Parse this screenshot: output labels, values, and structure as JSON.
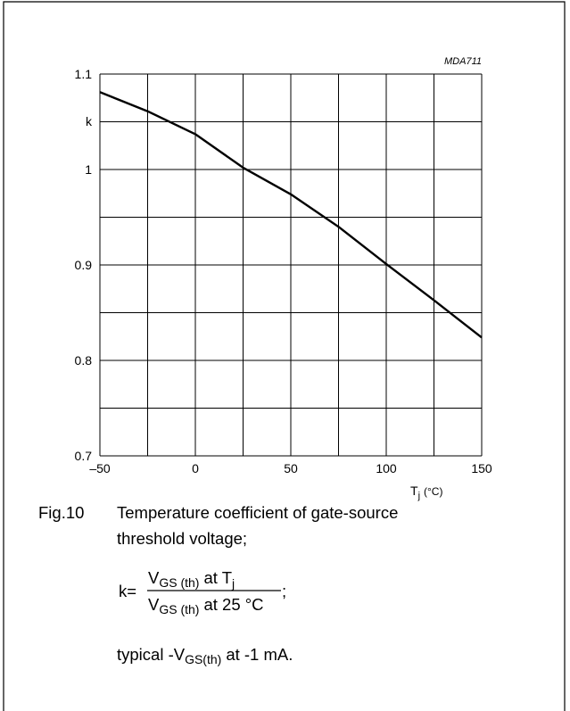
{
  "chart_data": {
    "type": "line",
    "code": "MDA711",
    "y_label": "k",
    "x_label": {
      "main": "T",
      "sub": "j",
      "unit": "(°C)"
    },
    "x": [
      -50,
      -25,
      0,
      25,
      50,
      75,
      100,
      125,
      150
    ],
    "values": [
      1.081,
      1.061,
      1.037,
      1.002,
      0.974,
      0.94,
      0.901,
      0.863,
      0.824
    ],
    "color": "#000000",
    "xlim": [
      -50,
      150
    ],
    "ylim": [
      0.7,
      1.1
    ],
    "xticks": [
      {
        "value": -50,
        "label": "–50"
      },
      0,
      50,
      100,
      150
    ],
    "yticks": [
      0.7,
      0.8,
      0.9,
      1,
      1.1
    ],
    "xgrid": [
      -50,
      -25,
      0,
      25,
      50,
      75,
      100,
      125,
      150
    ],
    "ygrid": [
      0.7,
      0.75,
      0.8,
      0.85,
      0.9,
      0.95,
      1,
      1.05,
      1.1
    ],
    "grid": true,
    "caption": {
      "fig": "Fig.10",
      "line1": "Temperature coefficient of gate-source",
      "line2": "threshold voltage;",
      "formula": {
        "lhs": "k=",
        "num": {
          "v": "V",
          "sub": "GS (th)",
          "mid": "at T",
          "sub2": "j"
        },
        "den": {
          "v": "V",
          "sub": "GS (th)",
          "mid": "at 25 °C"
        },
        "end": ";"
      },
      "note": {
        "pre": "typical -V",
        "sub": "GS(th)",
        "post": "at -1 mA."
      }
    }
  }
}
